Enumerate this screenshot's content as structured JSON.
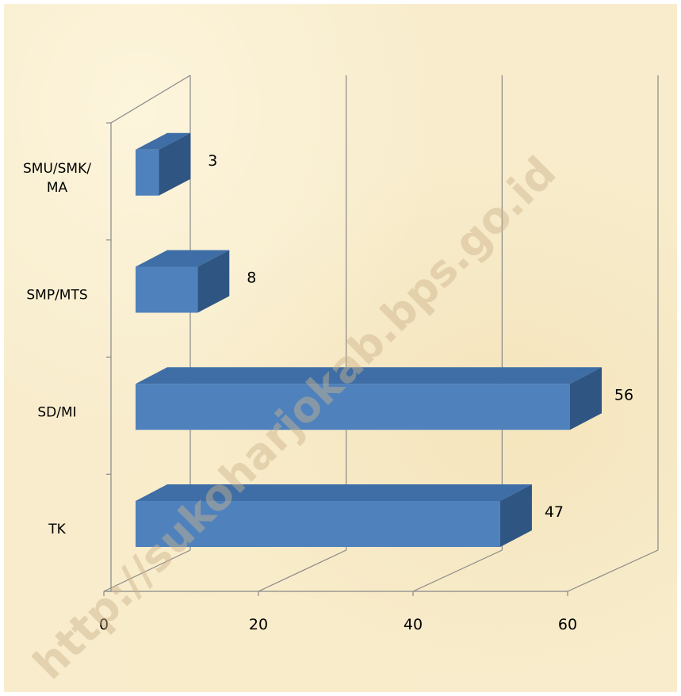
{
  "chart_data": {
    "type": "bar",
    "orientation": "horizontal",
    "style": "3d",
    "categories": [
      "TK",
      "SD/MI",
      "SMP/MTS",
      "SMU/SMK/MA"
    ],
    "category_lines": [
      [
        "TK"
      ],
      [
        "SD/MI"
      ],
      [
        "SMP/MTS"
      ],
      [
        "SMU/SMK/",
        "MA"
      ]
    ],
    "values": [
      47,
      56,
      8,
      3
    ],
    "data_labels": [
      "47",
      "56",
      "8",
      "3"
    ],
    "xlim": [
      0,
      60
    ],
    "ticks": [
      "0",
      "20",
      "40",
      "60"
    ],
    "grid": true,
    "legend": "none",
    "title": "",
    "xlabel": "",
    "ylabel": ""
  },
  "watermark": "http://sukoharjokab.bps.go.id",
  "colors": {
    "bar_front": "#4f81bd",
    "bar_top": "#3f6ea6",
    "bar_side": "#2f5583",
    "grid": "#888888",
    "background": "#f8eccc"
  }
}
